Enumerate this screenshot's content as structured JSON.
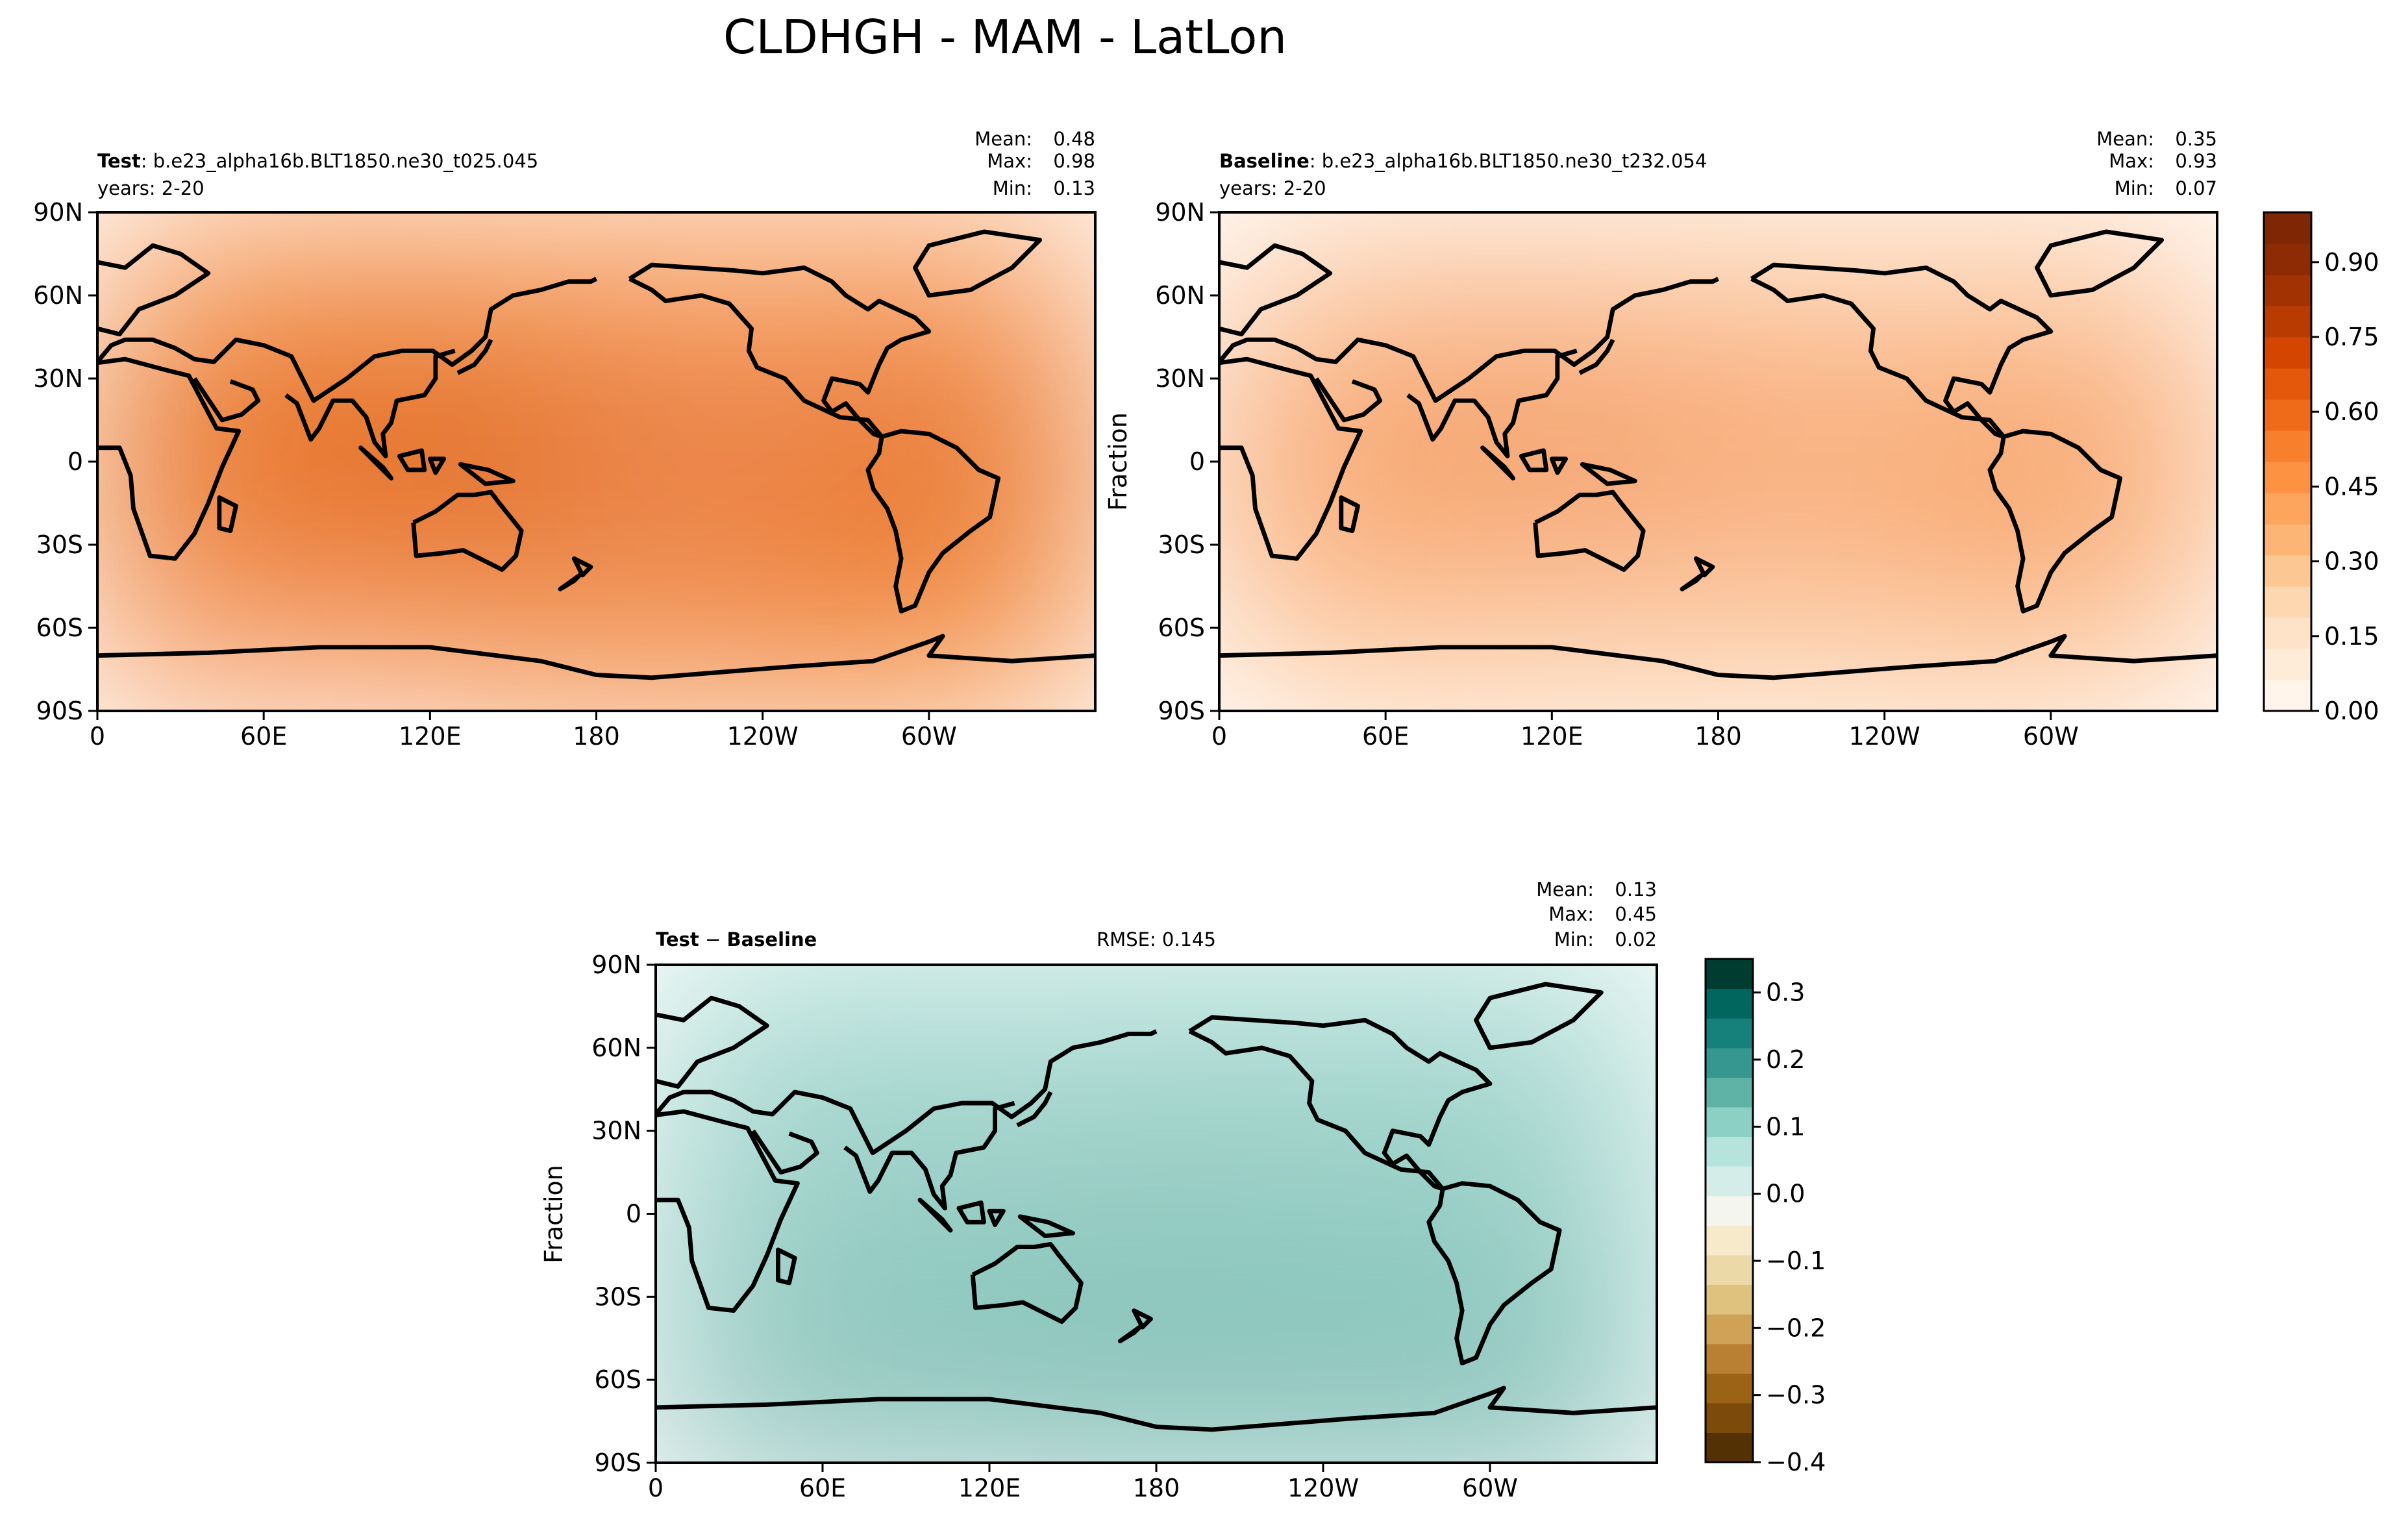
{
  "title": "CLDHGH - MAM - LatLon",
  "colors": {
    "oranges": [
      "#fff5eb",
      "#feecd9",
      "#fee3c8",
      "#fdd7af",
      "#fdc794",
      "#fdb576",
      "#fda55c",
      "#fd9243",
      "#f87f2c",
      "#ef6b1a",
      "#e4580b",
      "#d44501",
      "#b93b02",
      "#a33203",
      "#8c2b04",
      "#7f2704"
    ],
    "diff": [
      "#543005",
      "#7c4a0b",
      "#9b6315",
      "#b98033",
      "#cfa257",
      "#dfc27d",
      "#ecd9a8",
      "#f6eacb",
      "#f5f5f0",
      "#d5ede9",
      "#b6e3dc",
      "#8ccfc4",
      "#5fb2a6",
      "#35978f",
      "#16807a",
      "#01665e",
      "#003c30"
    ],
    "coast": "#000000"
  },
  "chart_data": [
    {
      "type": "heatmap",
      "name": "test",
      "label_bold": "Test",
      "label_rest": ": b.e23_alpha16b.BLT1850.ne30_t025.045",
      "subtitle": "years: 2-20",
      "stats": {
        "mean_label": "Mean:",
        "mean": "0.48",
        "max_label": "Max:",
        "max": "0.98",
        "min_label": "Min:",
        "min": "0.13"
      },
      "ylabel": "",
      "xticks": [
        "0",
        "60E",
        "120E",
        "180",
        "120W",
        "60W"
      ],
      "yticks": [
        "90N",
        "60N",
        "30N",
        "0",
        "30S",
        "60S",
        "90S"
      ],
      "xlim": [
        0,
        360
      ],
      "ylim": [
        -90,
        90
      ]
    },
    {
      "type": "heatmap",
      "name": "baseline",
      "label_bold": "Baseline",
      "label_rest": ": b.e23_alpha16b.BLT1850.ne30_t232.054",
      "subtitle": "years: 2-20",
      "stats": {
        "mean_label": "Mean:",
        "mean": "0.35",
        "max_label": "Max:",
        "max": "0.93",
        "min_label": "Min:",
        "min": "0.07"
      },
      "ylabel": "Fraction",
      "xticks": [
        "0",
        "60E",
        "120E",
        "180",
        "120W",
        "60W"
      ],
      "yticks": [
        "90N",
        "60N",
        "30N",
        "0",
        "30S",
        "60S",
        "90S"
      ],
      "xlim": [
        0,
        360
      ],
      "ylim": [
        -90,
        90
      ],
      "colorbar": {
        "range": [
          0,
          1.0
        ],
        "ticks": [
          "0.00",
          "0.15",
          "0.30",
          "0.45",
          "0.60",
          "0.75",
          "0.90"
        ],
        "tick_values": [
          0,
          0.15,
          0.3,
          0.45,
          0.6,
          0.75,
          0.9
        ]
      }
    },
    {
      "type": "heatmap",
      "name": "difference",
      "label_bold": "Test",
      "label_mid": " − ",
      "label_bold2": "Baseline",
      "rmse": "RMSE: 0.145",
      "stats": {
        "mean_label": "Mean:",
        "mean": "0.13",
        "max_label": "Max:",
        "max": "0.45",
        "min_label": "Min:",
        "min": "0.02"
      },
      "ylabel": "Fraction",
      "xticks": [
        "0",
        "60E",
        "120E",
        "180",
        "120W",
        "60W"
      ],
      "yticks": [
        "90N",
        "60N",
        "30N",
        "0",
        "30S",
        "60S",
        "90S"
      ],
      "xlim": [
        0,
        360
      ],
      "ylim": [
        -90,
        90
      ],
      "colorbar": {
        "range": [
          -0.4,
          0.35
        ],
        "ticks": [
          "0.3",
          "0.2",
          "0.1",
          "0.0",
          "−0.1",
          "−0.2",
          "−0.3",
          "−0.4"
        ],
        "tick_values": [
          0.3,
          0.2,
          0.1,
          0.0,
          -0.1,
          -0.2,
          -0.3,
          -0.4
        ]
      }
    }
  ]
}
